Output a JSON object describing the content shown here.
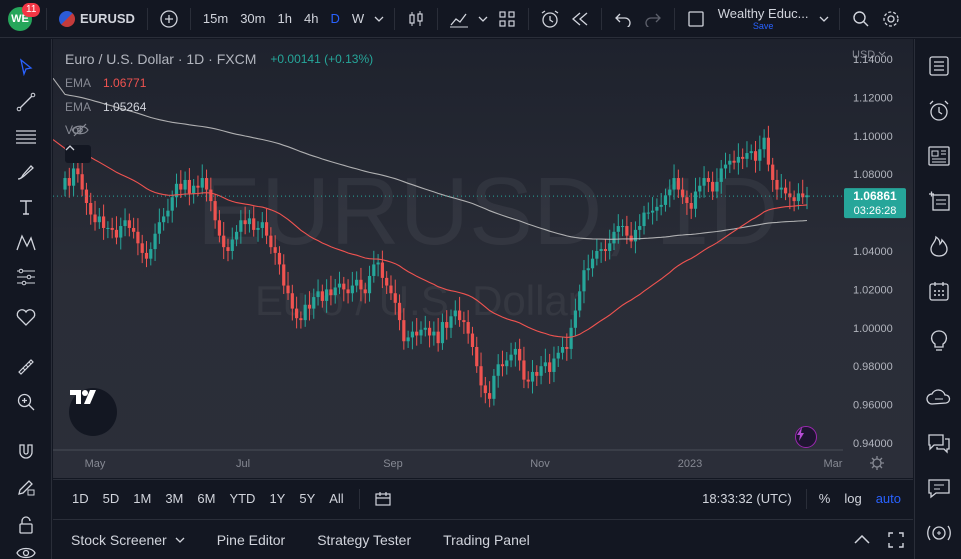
{
  "header": {
    "notification_count": "11",
    "symbol": "EURUSD",
    "timeframes": [
      "15m",
      "30m",
      "1h",
      "4h",
      "D",
      "W"
    ],
    "active_timeframe": "D",
    "layout_name": "Wealthy Educ...",
    "save_label": "Save"
  },
  "legend": {
    "title": "Euro / U.S. Dollar · 1D · FXCM",
    "change": "+0.00141 (+0.13%)",
    "ema1_label": "EMA",
    "ema1_value": "1.06771",
    "ema2_label": "EMA",
    "ema2_value": "1.05264",
    "vol_label": "Vol"
  },
  "watermark": {
    "symbol": "EURUSD, 1D",
    "name": "Euro / U.S. Dollar"
  },
  "price_axis": {
    "currency": "USD",
    "ticks": [
      "1.14000",
      "1.12000",
      "1.10000",
      "1.08000",
      "1.06000",
      "1.04000",
      "1.02000",
      "1.00000",
      "0.98000",
      "0.96000",
      "0.94000"
    ],
    "current_price": "1.06861",
    "countdown": "03:26:28"
  },
  "time_axis": {
    "ticks": [
      "May",
      "Jul",
      "Sep",
      "Nov",
      "2023",
      "Mar"
    ]
  },
  "range_bar": {
    "ranges": [
      "1D",
      "5D",
      "1M",
      "3M",
      "6M",
      "YTD",
      "1Y",
      "5Y",
      "All"
    ],
    "clock": "18:33:32 (UTC)",
    "percent_label": "%",
    "log_label": "log",
    "auto_label": "auto"
  },
  "footer": {
    "tabs": [
      "Stock Screener",
      "Pine Editor",
      "Strategy Tester",
      "Trading Panel"
    ]
  },
  "colors": {
    "up": "#26a69a",
    "down": "#ef5350",
    "ema_fast": "#f05350",
    "ema_slow": "#c8c8c8",
    "price_label_bg": "#26a69a",
    "accent": "#2962ff"
  },
  "chart_data": {
    "type": "candlestick",
    "title": "Euro / U.S. Dollar · 1D · FXCM",
    "ylim": [
      0.94,
      1.14
    ],
    "last_price": 1.06861,
    "series": [
      {
        "name": "EURUSD",
        "values": [
          1.078,
          1.074,
          1.083,
          1.08,
          1.072,
          1.065,
          1.059,
          1.055,
          1.058,
          1.052,
          1.052,
          1.051,
          1.047,
          1.053,
          1.056,
          1.052,
          1.05,
          1.044,
          1.039,
          1.036,
          1.041,
          1.049,
          1.055,
          1.058,
          1.061,
          1.068,
          1.075,
          1.072,
          1.077,
          1.07,
          1.074,
          1.073,
          1.078,
          1.072,
          1.066,
          1.056,
          1.048,
          1.042,
          1.04,
          1.046,
          1.05,
          1.056,
          1.054,
          1.057,
          1.051,
          1.052,
          1.055,
          1.048,
          1.042,
          1.039,
          1.033,
          1.022,
          1.018,
          1.01,
          1.005,
          1.004,
          1.012,
          1.01,
          1.016,
          1.019,
          1.014,
          1.02,
          1.017,
          1.021,
          1.023,
          1.02,
          1.018,
          1.022,
          1.025,
          1.02,
          1.018,
          1.027,
          1.033,
          1.034,
          1.026,
          1.022,
          1.018,
          1.013,
          1.004,
          0.993,
          0.995,
          0.998,
          0.996,
          0.999,
          1.0,
          0.996,
          0.998,
          0.992,
          1.003,
          1.0,
          1.006,
          1.009,
          1.004,
          1.003,
          0.997,
          0.99,
          0.98,
          0.97,
          0.966,
          0.963,
          0.975,
          0.981,
          0.98,
          0.983,
          0.986,
          0.989,
          0.983,
          0.973,
          0.972,
          0.977,
          0.975,
          0.98,
          0.982,
          0.977,
          0.984,
          0.987,
          0.99,
          0.989,
          1.0,
          1.009,
          1.019,
          1.03,
          1.031,
          1.036,
          1.04,
          1.041,
          1.04,
          1.044,
          1.05,
          1.053,
          1.053,
          1.048,
          1.045,
          1.051,
          1.053,
          1.06,
          1.06,
          1.061,
          1.063,
          1.064,
          1.069,
          1.072,
          1.078,
          1.072,
          1.068,
          1.065,
          1.062,
          1.071,
          1.074,
          1.078,
          1.076,
          1.071,
          1.076,
          1.083,
          1.085,
          1.087,
          1.086,
          1.089,
          1.088,
          1.091,
          1.092,
          1.087,
          1.093,
          1.099,
          1.085,
          1.077,
          1.072,
          1.073,
          1.07,
          1.068,
          1.066,
          1.07,
          1.068,
          1.069
        ]
      },
      {
        "name": "EMA",
        "value": 1.06771
      },
      {
        "name": "EMA",
        "value": 1.05264
      }
    ]
  }
}
